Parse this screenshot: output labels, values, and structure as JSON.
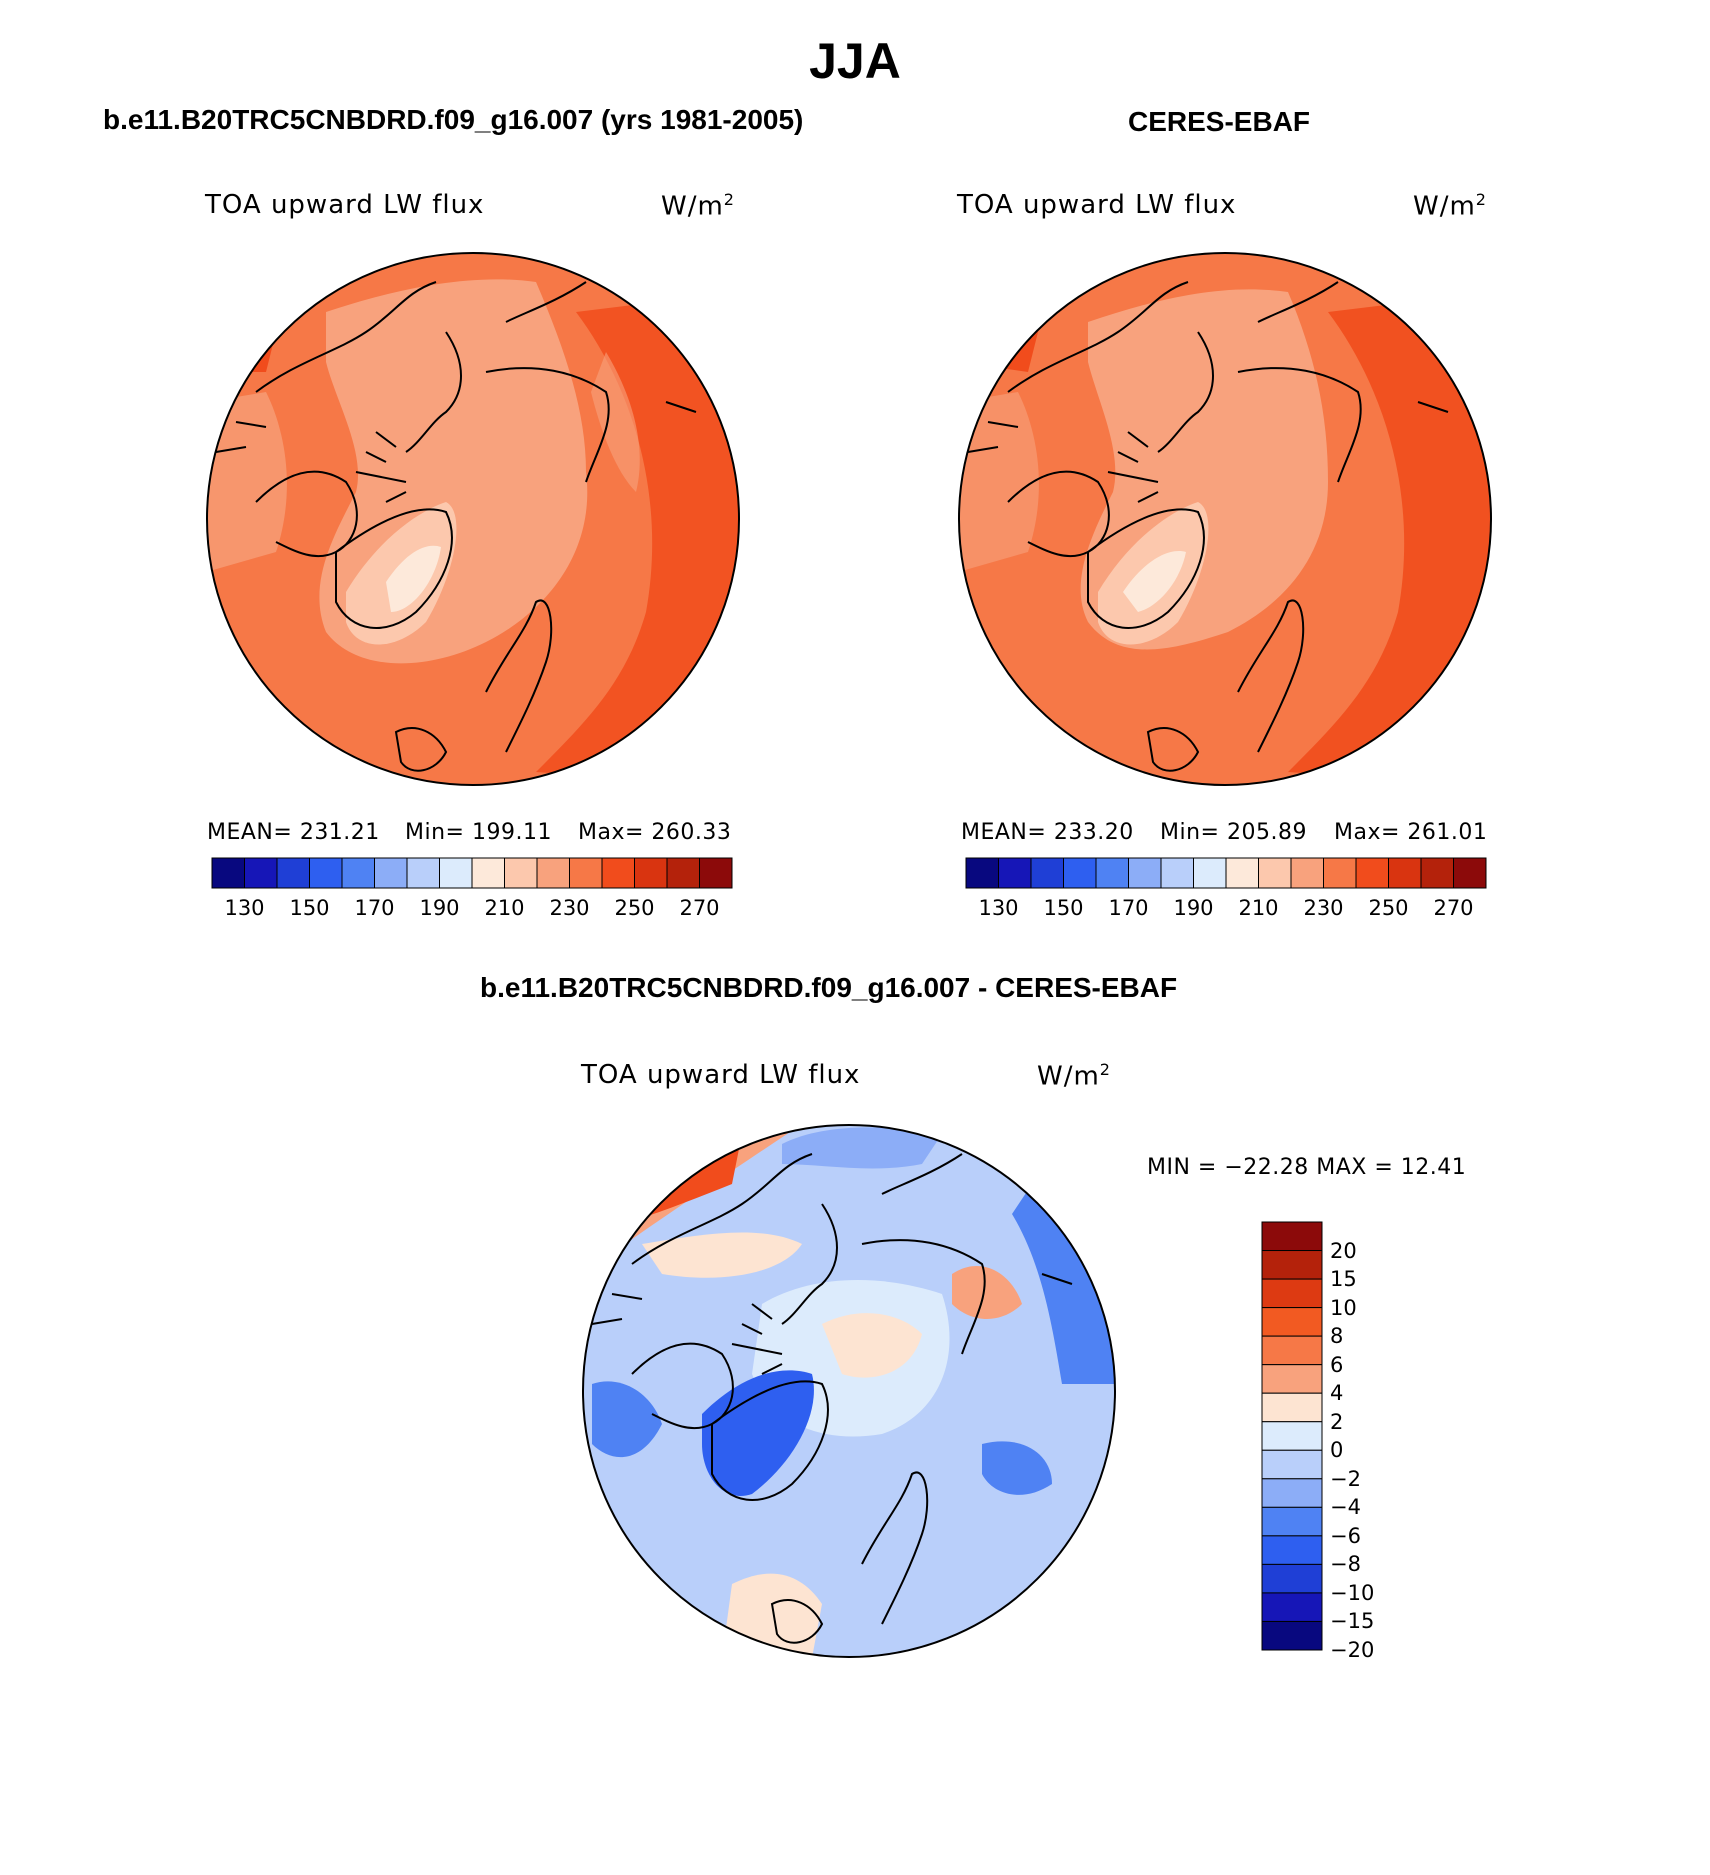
{
  "title": "JJA",
  "panels": [
    {
      "case": "b.e11.B20TRC5CNBDRD.f09_g16.007 (yrs 1981-2005)",
      "field": "TOA upward LW flux",
      "units": "W/m",
      "units_sup": "2",
      "stats": {
        "mean": "MEAN= 231.21",
        "min": "Min= 199.11",
        "max": "Max= 260.33"
      }
    },
    {
      "case": "CERES-EBAF",
      "field": "TOA upward LW flux",
      "units": "W/m",
      "units_sup": "2",
      "stats": {
        "mean": "MEAN= 233.20",
        "min": "Min= 205.89",
        "max": "Max= 261.01"
      }
    },
    {
      "case": "b.e11.B20TRC5CNBDRD.f09_g16.007 - CERES-EBAF",
      "field": "TOA upward LW flux",
      "units": "W/m",
      "units_sup": "2",
      "stats": {
        "minmax": "MIN = −22.28 MAX =   12.41"
      }
    }
  ],
  "colorbar_abs": {
    "colors": [
      "#08087f",
      "#1616b7",
      "#1f3fd6",
      "#2e5ff0",
      "#4f82f3",
      "#8cadf7",
      "#b9cffa",
      "#dcebfc",
      "#fde9da",
      "#fcc8ad",
      "#f8a27d",
      "#f67847",
      "#f14c1c",
      "#d93410",
      "#b4220b",
      "#8c0a0a"
    ],
    "ticks": [
      "130",
      "150",
      "170",
      "190",
      "210",
      "230",
      "250",
      "270"
    ]
  },
  "colorbar_diff": {
    "colors": [
      "#8c0a0a",
      "#b4220b",
      "#dd3a12",
      "#f25a22",
      "#f67847",
      "#f8a27d",
      "#fde4d2",
      "#dcebfc",
      "#b9cffa",
      "#8cadf7",
      "#4f82f3",
      "#2e5ff0",
      "#1f3fd6",
      "#1616b7",
      "#08087f"
    ],
    "ticks": [
      "20",
      "15",
      "10",
      "8",
      "6",
      "4",
      "2",
      "0",
      "−2",
      "−4",
      "−6",
      "−8",
      "−10",
      "−15",
      "−20"
    ]
  }
}
